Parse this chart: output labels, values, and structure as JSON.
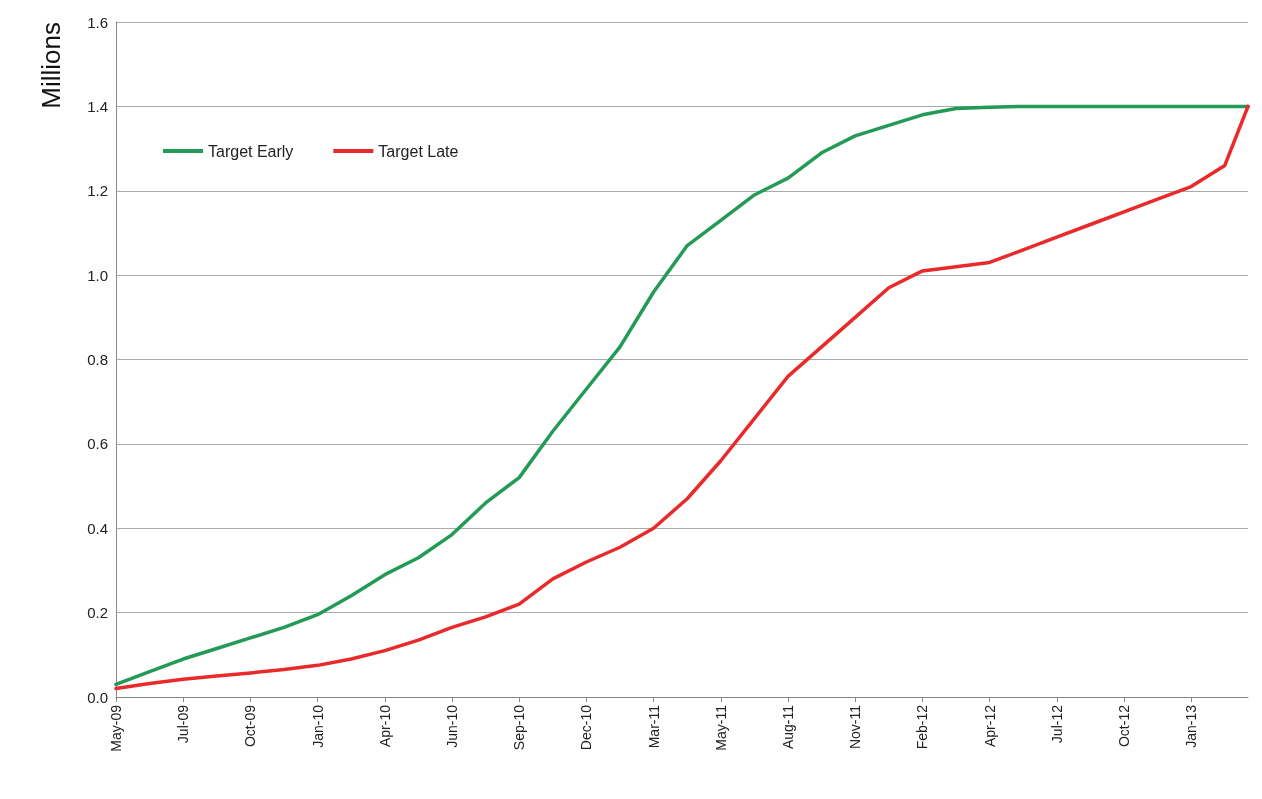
{
  "chart_data": {
    "type": "line",
    "ylabel": "Millions",
    "legend": "top left",
    "grid": "y",
    "marker": "none",
    "line_style": "solid",
    "xlim": [
      "2009-05-01",
      "2013-03-16"
    ],
    "xticks": [
      {
        "value": "2009-05-01",
        "label": "May-09"
      },
      {
        "value": "2009-07-24",
        "label": "Jul-09"
      },
      {
        "value": "2009-10-16",
        "label": "Oct-09"
      },
      {
        "value": "2010-01-08",
        "label": "Jan-10"
      },
      {
        "value": "2010-04-02",
        "label": "Apr-10"
      },
      {
        "value": "2010-06-25",
        "label": "Jun-10"
      },
      {
        "value": "2010-09-17",
        "label": "Sep-10"
      },
      {
        "value": "2010-12-10",
        "label": "Dec-10"
      },
      {
        "value": "2011-03-04",
        "label": "Mar-11"
      },
      {
        "value": "2011-05-27",
        "label": "May-11"
      },
      {
        "value": "2011-08-19",
        "label": "Aug-11"
      },
      {
        "value": "2011-11-11",
        "label": "Nov-11"
      },
      {
        "value": "2012-02-03",
        "label": "Feb-12"
      },
      {
        "value": "2012-04-27",
        "label": "Apr-12"
      },
      {
        "value": "2012-07-20",
        "label": "Jul-12"
      },
      {
        "value": "2012-10-12",
        "label": "Oct-12"
      },
      {
        "value": "2013-01-04",
        "label": "Jan-13"
      }
    ],
    "ylim": [
      0,
      1.6
    ],
    "yticks": [
      {
        "value": 0,
        "label": "0.0"
      },
      {
        "value": 0.2,
        "label": "0.2"
      },
      {
        "value": 0.4,
        "label": "0.4"
      },
      {
        "value": 0.6,
        "label": "0.6"
      },
      {
        "value": 0.8,
        "label": "0.8"
      },
      {
        "value": 1,
        "label": "1.0"
      },
      {
        "value": 1.2,
        "label": "1.2"
      },
      {
        "value": 1.4,
        "label": "1.4"
      },
      {
        "value": 1.6,
        "label": "1.6"
      }
    ],
    "x": [
      "2009-05-01",
      "2009-06-12",
      "2009-07-24",
      "2009-09-04",
      "2009-10-16",
      "2009-11-27",
      "2010-01-08",
      "2010-02-19",
      "2010-04-02",
      "2010-05-14",
      "2010-06-25",
      "2010-08-06",
      "2010-09-17",
      "2010-10-29",
      "2010-12-10",
      "2011-01-21",
      "2011-03-04",
      "2011-04-15",
      "2011-05-27",
      "2011-07-08",
      "2011-08-19",
      "2011-09-30",
      "2011-11-11",
      "2011-12-23",
      "2012-02-03",
      "2012-03-16",
      "2012-04-27",
      "2012-06-08",
      "2012-07-20",
      "2012-08-31",
      "2012-10-12",
      "2012-11-23",
      "2013-01-04",
      "2013-02-15",
      "2013-03-16"
    ],
    "series": [
      {
        "name": "Target Early",
        "color": "#239a55",
        "values": [
          0.03,
          0.06,
          0.09,
          0.115,
          0.14,
          0.165,
          0.195,
          0.24,
          0.29,
          0.33,
          0.385,
          0.46,
          0.52,
          0.63,
          0.73,
          0.83,
          0.96,
          1.07,
          1.13,
          1.19,
          1.23,
          1.29,
          1.33,
          1.355,
          1.38,
          1.395,
          1.398,
          1.4,
          1.4,
          1.4,
          1.4,
          1.4,
          1.4,
          1.4,
          1.4
        ]
      },
      {
        "name": "Target Late",
        "color": "#ea2a2a",
        "values": [
          0.02,
          0.032,
          0.042,
          0.05,
          0.057,
          0.065,
          0.075,
          0.09,
          0.11,
          0.135,
          0.165,
          0.19,
          0.22,
          0.28,
          0.32,
          0.355,
          0.4,
          0.47,
          0.56,
          0.66,
          0.76,
          0.83,
          0.9,
          0.97,
          1.01,
          1.02,
          1.03,
          1.06,
          1.09,
          1.12,
          1.15,
          1.18,
          1.21,
          1.26,
          1.4
        ]
      }
    ]
  }
}
